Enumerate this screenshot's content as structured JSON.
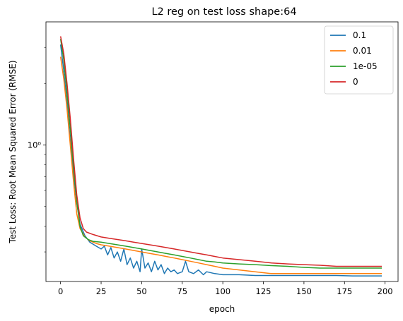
{
  "chart_data": {
    "type": "line",
    "title": "L2 reg on test loss shape:64",
    "xlabel": "epoch",
    "ylabel": "Test Loss: Root Mean Squared Error (RMSE)",
    "xlim": [
      -9,
      208
    ],
    "ylim": [
      0.215,
      4.0
    ],
    "yscale": "log",
    "grid": false,
    "legend_position": "top-right",
    "x_ticks": [
      0,
      25,
      50,
      75,
      100,
      125,
      150,
      175,
      200
    ],
    "y_ticks": [
      {
        "value": 1,
        "label": "10⁰"
      }
    ],
    "series": [
      {
        "name": "0.1",
        "color": "#1f77b4",
        "points": [
          [
            0,
            3.1
          ],
          [
            2,
            2.3
          ],
          [
            4,
            1.6
          ],
          [
            6,
            1.05
          ],
          [
            8,
            0.72
          ],
          [
            10,
            0.52
          ],
          [
            12,
            0.41
          ],
          [
            15,
            0.36
          ],
          [
            18,
            0.335
          ],
          [
            22,
            0.32
          ],
          [
            25,
            0.31
          ],
          [
            27,
            0.32
          ],
          [
            29,
            0.29
          ],
          [
            31,
            0.315
          ],
          [
            33,
            0.28
          ],
          [
            35,
            0.3
          ],
          [
            37,
            0.27
          ],
          [
            39,
            0.31
          ],
          [
            41,
            0.26
          ],
          [
            43,
            0.28
          ],
          [
            45,
            0.25
          ],
          [
            47,
            0.27
          ],
          [
            49,
            0.24
          ],
          [
            50,
            0.31
          ],
          [
            52,
            0.25
          ],
          [
            54,
            0.265
          ],
          [
            56,
            0.24
          ],
          [
            58,
            0.27
          ],
          [
            60,
            0.245
          ],
          [
            62,
            0.26
          ],
          [
            64,
            0.235
          ],
          [
            66,
            0.25
          ],
          [
            68,
            0.24
          ],
          [
            70,
            0.245
          ],
          [
            72,
            0.235
          ],
          [
            75,
            0.24
          ],
          [
            77,
            0.27
          ],
          [
            79,
            0.24
          ],
          [
            82,
            0.235
          ],
          [
            85,
            0.245
          ],
          [
            88,
            0.232
          ],
          [
            90,
            0.24
          ],
          [
            95,
            0.235
          ],
          [
            100,
            0.232
          ],
          [
            110,
            0.232
          ],
          [
            120,
            0.23
          ],
          [
            130,
            0.23
          ],
          [
            140,
            0.23
          ],
          [
            150,
            0.23
          ],
          [
            160,
            0.23
          ],
          [
            170,
            0.23
          ],
          [
            180,
            0.229
          ],
          [
            190,
            0.229
          ],
          [
            198,
            0.229
          ]
        ]
      },
      {
        "name": "0.01",
        "color": "#ff7f0e",
        "points": [
          [
            0,
            2.7
          ],
          [
            2,
            2.1
          ],
          [
            4,
            1.5
          ],
          [
            6,
            1.0
          ],
          [
            8,
            0.66
          ],
          [
            10,
            0.46
          ],
          [
            12,
            0.39
          ],
          [
            15,
            0.355
          ],
          [
            18,
            0.34
          ],
          [
            22,
            0.33
          ],
          [
            25,
            0.325
          ],
          [
            30,
            0.32
          ],
          [
            35,
            0.315
          ],
          [
            40,
            0.31
          ],
          [
            45,
            0.305
          ],
          [
            50,
            0.3
          ],
          [
            55,
            0.295
          ],
          [
            60,
            0.29
          ],
          [
            65,
            0.285
          ],
          [
            70,
            0.28
          ],
          [
            75,
            0.275
          ],
          [
            80,
            0.27
          ],
          [
            85,
            0.265
          ],
          [
            90,
            0.26
          ],
          [
            95,
            0.255
          ],
          [
            100,
            0.25
          ],
          [
            110,
            0.245
          ],
          [
            120,
            0.24
          ],
          [
            130,
            0.235
          ],
          [
            140,
            0.235
          ],
          [
            150,
            0.235
          ],
          [
            160,
            0.235
          ],
          [
            170,
            0.235
          ],
          [
            180,
            0.235
          ],
          [
            190,
            0.235
          ],
          [
            198,
            0.235
          ]
        ]
      },
      {
        "name": "1e-05",
        "color": "#2ca02c",
        "points": [
          [
            0,
            3.3
          ],
          [
            2,
            2.6
          ],
          [
            4,
            1.8
          ],
          [
            6,
            1.2
          ],
          [
            8,
            0.78
          ],
          [
            10,
            0.53
          ],
          [
            12,
            0.4
          ],
          [
            14,
            0.36
          ],
          [
            17,
            0.345
          ],
          [
            20,
            0.338
          ],
          [
            25,
            0.335
          ],
          [
            30,
            0.33
          ],
          [
            35,
            0.325
          ],
          [
            40,
            0.32
          ],
          [
            45,
            0.315
          ],
          [
            50,
            0.31
          ],
          [
            55,
            0.305
          ],
          [
            60,
            0.3
          ],
          [
            65,
            0.295
          ],
          [
            70,
            0.29
          ],
          [
            75,
            0.285
          ],
          [
            80,
            0.28
          ],
          [
            85,
            0.275
          ],
          [
            90,
            0.27
          ],
          [
            95,
            0.268
          ],
          [
            100,
            0.265
          ],
          [
            110,
            0.262
          ],
          [
            120,
            0.26
          ],
          [
            130,
            0.257
          ],
          [
            140,
            0.255
          ],
          [
            150,
            0.252
          ],
          [
            160,
            0.25
          ],
          [
            170,
            0.25
          ],
          [
            180,
            0.25
          ],
          [
            190,
            0.25
          ],
          [
            198,
            0.25
          ]
        ]
      },
      {
        "name": "0",
        "color": "#d62728",
        "points": [
          [
            0,
            3.4
          ],
          [
            2,
            2.8
          ],
          [
            4,
            2.0
          ],
          [
            6,
            1.35
          ],
          [
            8,
            0.86
          ],
          [
            10,
            0.57
          ],
          [
            12,
            0.44
          ],
          [
            14,
            0.39
          ],
          [
            16,
            0.375
          ],
          [
            20,
            0.365
          ],
          [
            25,
            0.355
          ],
          [
            30,
            0.35
          ],
          [
            35,
            0.345
          ],
          [
            40,
            0.34
          ],
          [
            45,
            0.335
          ],
          [
            50,
            0.33
          ],
          [
            55,
            0.325
          ],
          [
            60,
            0.32
          ],
          [
            65,
            0.315
          ],
          [
            70,
            0.31
          ],
          [
            75,
            0.305
          ],
          [
            80,
            0.3
          ],
          [
            85,
            0.295
          ],
          [
            90,
            0.29
          ],
          [
            95,
            0.285
          ],
          [
            100,
            0.28
          ],
          [
            110,
            0.275
          ],
          [
            120,
            0.27
          ],
          [
            130,
            0.265
          ],
          [
            140,
            0.262
          ],
          [
            150,
            0.26
          ],
          [
            160,
            0.258
          ],
          [
            170,
            0.255
          ],
          [
            180,
            0.255
          ],
          [
            190,
            0.255
          ],
          [
            198,
            0.255
          ]
        ]
      }
    ]
  }
}
